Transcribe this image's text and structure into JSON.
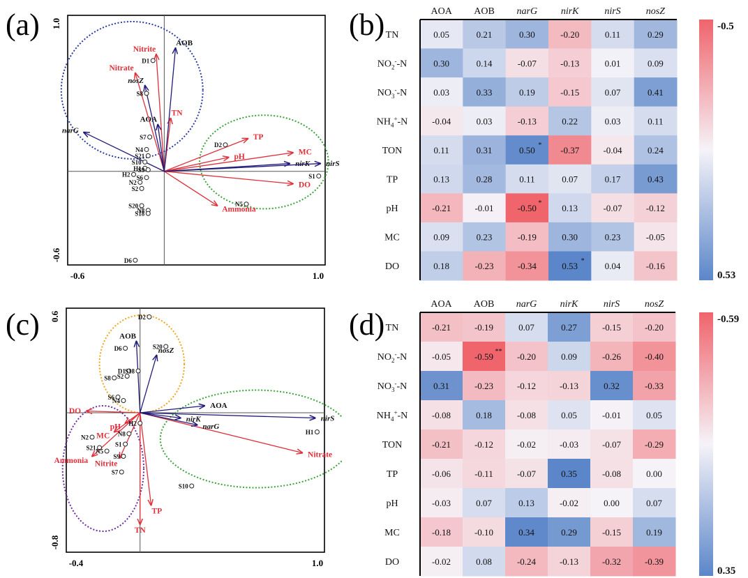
{
  "chart_data": [
    {
      "panel": "(a)",
      "type": "scatter",
      "xlim": [
        -0.6,
        1.0
      ],
      "ylim": [
        -0.6,
        1.0
      ],
      "x_ticks": [
        "-0.6",
        "1.0"
      ],
      "y_ticks": [
        "1.0",
        "-0.6"
      ],
      "response_arrows": [
        {
          "label": "AOB",
          "x": 0.07,
          "y": 0.79
        },
        {
          "label": "nosZ",
          "x": -0.12,
          "y": 0.55
        },
        {
          "label": "AOA",
          "x": -0.04,
          "y": 0.3
        },
        {
          "label": "narG",
          "x": -0.5,
          "y": 0.25
        },
        {
          "label": "nirK",
          "x": 0.78,
          "y": 0.05
        },
        {
          "label": "nirS",
          "x": 0.97,
          "y": 0.05
        }
      ],
      "env_arrows": [
        {
          "label": "Nitrite",
          "x": -0.05,
          "y": 0.75
        },
        {
          "label": "Nitrate",
          "x": -0.18,
          "y": 0.63
        },
        {
          "label": "TN",
          "x": 0.04,
          "y": 0.34
        },
        {
          "label": "TP",
          "x": 0.52,
          "y": 0.21
        },
        {
          "label": "MC",
          "x": 0.8,
          "y": 0.12
        },
        {
          "label": "pH",
          "x": 0.4,
          "y": 0.09
        },
        {
          "label": "DO",
          "x": 0.8,
          "y": -0.08
        },
        {
          "label": "Ammonia",
          "x": 0.33,
          "y": -0.22
        }
      ],
      "sites": [
        {
          "label": "D1",
          "x": -0.07,
          "y": 0.71
        },
        {
          "label": "S8",
          "x": -0.11,
          "y": 0.5
        },
        {
          "label": "S7",
          "x": -0.09,
          "y": 0.22
        },
        {
          "label": "N4",
          "x": -0.11,
          "y": 0.14
        },
        {
          "label": "S21",
          "x": -0.1,
          "y": 0.1
        },
        {
          "label": "S10",
          "x": -0.12,
          "y": 0.06
        },
        {
          "label": "H1",
          "x": -0.12,
          "y": 0.02
        },
        {
          "label": "S9",
          "x": -0.1,
          "y": 0.01
        },
        {
          "label": "H2",
          "x": -0.19,
          "y": -0.02
        },
        {
          "label": "S6",
          "x": -0.11,
          "y": -0.04
        },
        {
          "label": "N2",
          "x": -0.15,
          "y": -0.07
        },
        {
          "label": "S2",
          "x": -0.14,
          "y": -0.11
        },
        {
          "label": "S20",
          "x": -0.14,
          "y": -0.22
        },
        {
          "label": "N8",
          "x": -0.1,
          "y": -0.25
        },
        {
          "label": "S18",
          "x": -0.1,
          "y": -0.27
        },
        {
          "label": "D2",
          "x": 0.38,
          "y": 0.17
        },
        {
          "label": "S1",
          "x": 0.96,
          "y": -0.03
        },
        {
          "label": "N5",
          "x": 0.51,
          "y": -0.21
        },
        {
          "label": "D6",
          "x": -0.18,
          "y": -0.57
        }
      ]
    },
    {
      "panel": "(b)",
      "type": "heatmap",
      "columns": [
        "AOA",
        "AOB",
        "narG",
        "nirK",
        "nirS",
        "nosZ"
      ],
      "rows": [
        "TN",
        "NO2--N",
        "NO3--N",
        "NH4+-N",
        "TON",
        "TP",
        "pH",
        "MC",
        "DO"
      ],
      "values": [
        [
          0.05,
          0.21,
          0.3,
          -0.2,
          0.11,
          0.29
        ],
        [
          0.3,
          0.14,
          -0.07,
          -0.13,
          0.01,
          0.09
        ],
        [
          0.03,
          0.33,
          0.19,
          -0.15,
          0.07,
          0.41
        ],
        [
          -0.04,
          0.03,
          -0.13,
          0.22,
          0.03,
          0.11
        ],
        [
          0.11,
          0.31,
          0.5,
          -0.37,
          -0.04,
          0.24
        ],
        [
          0.13,
          0.28,
          0.11,
          0.07,
          0.17,
          0.43
        ],
        [
          -0.21,
          -0.01,
          -0.5,
          0.13,
          -0.07,
          -0.12
        ],
        [
          0.09,
          0.23,
          -0.19,
          0.3,
          0.23,
          -0.05
        ],
        [
          0.18,
          -0.23,
          -0.34,
          0.53,
          0.04,
          -0.16
        ]
      ],
      "significance": [
        {
          "row": 4,
          "col": 2,
          "mark": "*"
        },
        {
          "row": 6,
          "col": 2,
          "mark": "*"
        },
        {
          "row": 8,
          "col": 3,
          "mark": "*"
        }
      ],
      "colorbar": {
        "min_label": "-0.5",
        "max_label": "0.53",
        "min": -0.5,
        "max": 0.53
      }
    },
    {
      "panel": "(c)",
      "type": "scatter",
      "xlim": [
        -0.4,
        1.0
      ],
      "ylim": [
        -0.8,
        0.6
      ],
      "x_ticks": [
        "-0.4",
        "1.0"
      ],
      "y_ticks": [
        "0.6",
        "-0.8"
      ],
      "response_arrows": [
        {
          "label": "AOB",
          "x": -0.02,
          "y": 0.41
        },
        {
          "label": "nosZ",
          "x": 0.09,
          "y": 0.33
        },
        {
          "label": "AOA",
          "x": 0.35,
          "y": 0.04
        },
        {
          "label": "nirK",
          "x": 0.22,
          "y": -0.03
        },
        {
          "label": "narG",
          "x": 0.31,
          "y": -0.07
        },
        {
          "label": "nirS",
          "x": 0.95,
          "y": -0.03
        }
      ],
      "env_arrows": [
        {
          "label": "DO",
          "x": -0.29,
          "y": 0.01
        },
        {
          "label": "pH",
          "x": -0.08,
          "y": -0.06
        },
        {
          "label": "MC",
          "x": -0.14,
          "y": -0.11
        },
        {
          "label": "Ammonia",
          "x": -0.26,
          "y": -0.25
        },
        {
          "label": "Nitrite",
          "x": -0.11,
          "y": -0.26
        },
        {
          "label": "Nitrate",
          "x": 0.88,
          "y": -0.23
        },
        {
          "label": "TP",
          "x": 0.06,
          "y": -0.53
        },
        {
          "label": "TN",
          "x": 0.0,
          "y": -0.64
        }
      ],
      "sites": [
        {
          "label": "D2",
          "x": 0.05,
          "y": 0.55
        },
        {
          "label": "S20",
          "x": 0.14,
          "y": 0.38
        },
        {
          "label": "D6",
          "x": -0.08,
          "y": 0.37
        },
        {
          "label": "D1",
          "x": -0.06,
          "y": 0.24
        },
        {
          "label": "S18",
          "x": -0.01,
          "y": 0.24
        },
        {
          "label": "S8",
          "x": -0.14,
          "y": 0.2
        },
        {
          "label": "S2",
          "x": -0.07,
          "y": 0.21
        },
        {
          "label": "S6",
          "x": -0.12,
          "y": 0.09
        },
        {
          "label": "N4",
          "x": -0.09,
          "y": 0.07
        },
        {
          "label": "H2",
          "x": 0.0,
          "y": -0.06
        },
        {
          "label": "N8",
          "x": -0.06,
          "y": -0.12
        },
        {
          "label": "S1",
          "x": -0.08,
          "y": -0.18
        },
        {
          "label": "N2",
          "x": -0.26,
          "y": -0.14
        },
        {
          "label": "S21",
          "x": -0.22,
          "y": -0.2
        },
        {
          "label": "N5",
          "x": -0.18,
          "y": -0.22
        },
        {
          "label": "S9",
          "x": -0.09,
          "y": -0.25
        },
        {
          "label": "S7",
          "x": -0.1,
          "y": -0.34
        },
        {
          "label": "S10",
          "x": 0.28,
          "y": -0.42
        },
        {
          "label": "H1",
          "x": 0.96,
          "y": -0.11
        }
      ]
    },
    {
      "panel": "(d)",
      "type": "heatmap",
      "columns": [
        "AOA",
        "AOB",
        "narG",
        "nirK",
        "nirS",
        "nosZ"
      ],
      "rows": [
        "TN",
        "NO2--N",
        "NO3--N",
        "NH4+-N",
        "TON",
        "TP",
        "pH",
        "MC",
        "DO"
      ],
      "values": [
        [
          -0.21,
          -0.19,
          0.07,
          0.27,
          -0.15,
          -0.2
        ],
        [
          -0.05,
          -0.59,
          -0.2,
          0.09,
          -0.26,
          -0.4
        ],
        [
          0.31,
          -0.23,
          -0.12,
          -0.13,
          0.32,
          -0.33
        ],
        [
          -0.08,
          0.18,
          -0.08,
          0.05,
          -0.01,
          0.05
        ],
        [
          -0.21,
          -0.12,
          -0.02,
          -0.03,
          -0.07,
          -0.29
        ],
        [
          -0.06,
          -0.11,
          -0.07,
          0.35,
          -0.08,
          0.0
        ],
        [
          -0.03,
          0.07,
          0.13,
          -0.02,
          0.0,
          0.07
        ],
        [
          -0.18,
          -0.1,
          0.34,
          0.29,
          -0.15,
          0.19
        ],
        [
          -0.02,
          0.08,
          -0.24,
          -0.13,
          -0.32,
          -0.39
        ]
      ],
      "significance": [
        {
          "row": 1,
          "col": 1,
          "mark": "**"
        }
      ],
      "colorbar": {
        "min_label": "-0.59",
        "max_label": "0.35",
        "min": -0.59,
        "max": 0.35
      }
    }
  ],
  "labels": {
    "a": "(a)",
    "b": "(b)",
    "c": "(c)",
    "d": "(d)"
  },
  "colors": {
    "response": "#1f1a7a",
    "env": "#e0303a",
    "circle_blue": "#2b3aa0",
    "circle_green": "#3aa23a",
    "circle_orange": "#f2a41c",
    "circle_purple": "#6a2ba0",
    "heat_neg": "#f0646c",
    "heat_pos": "#5b86c9",
    "heat_mid": "#f5f3f8"
  }
}
